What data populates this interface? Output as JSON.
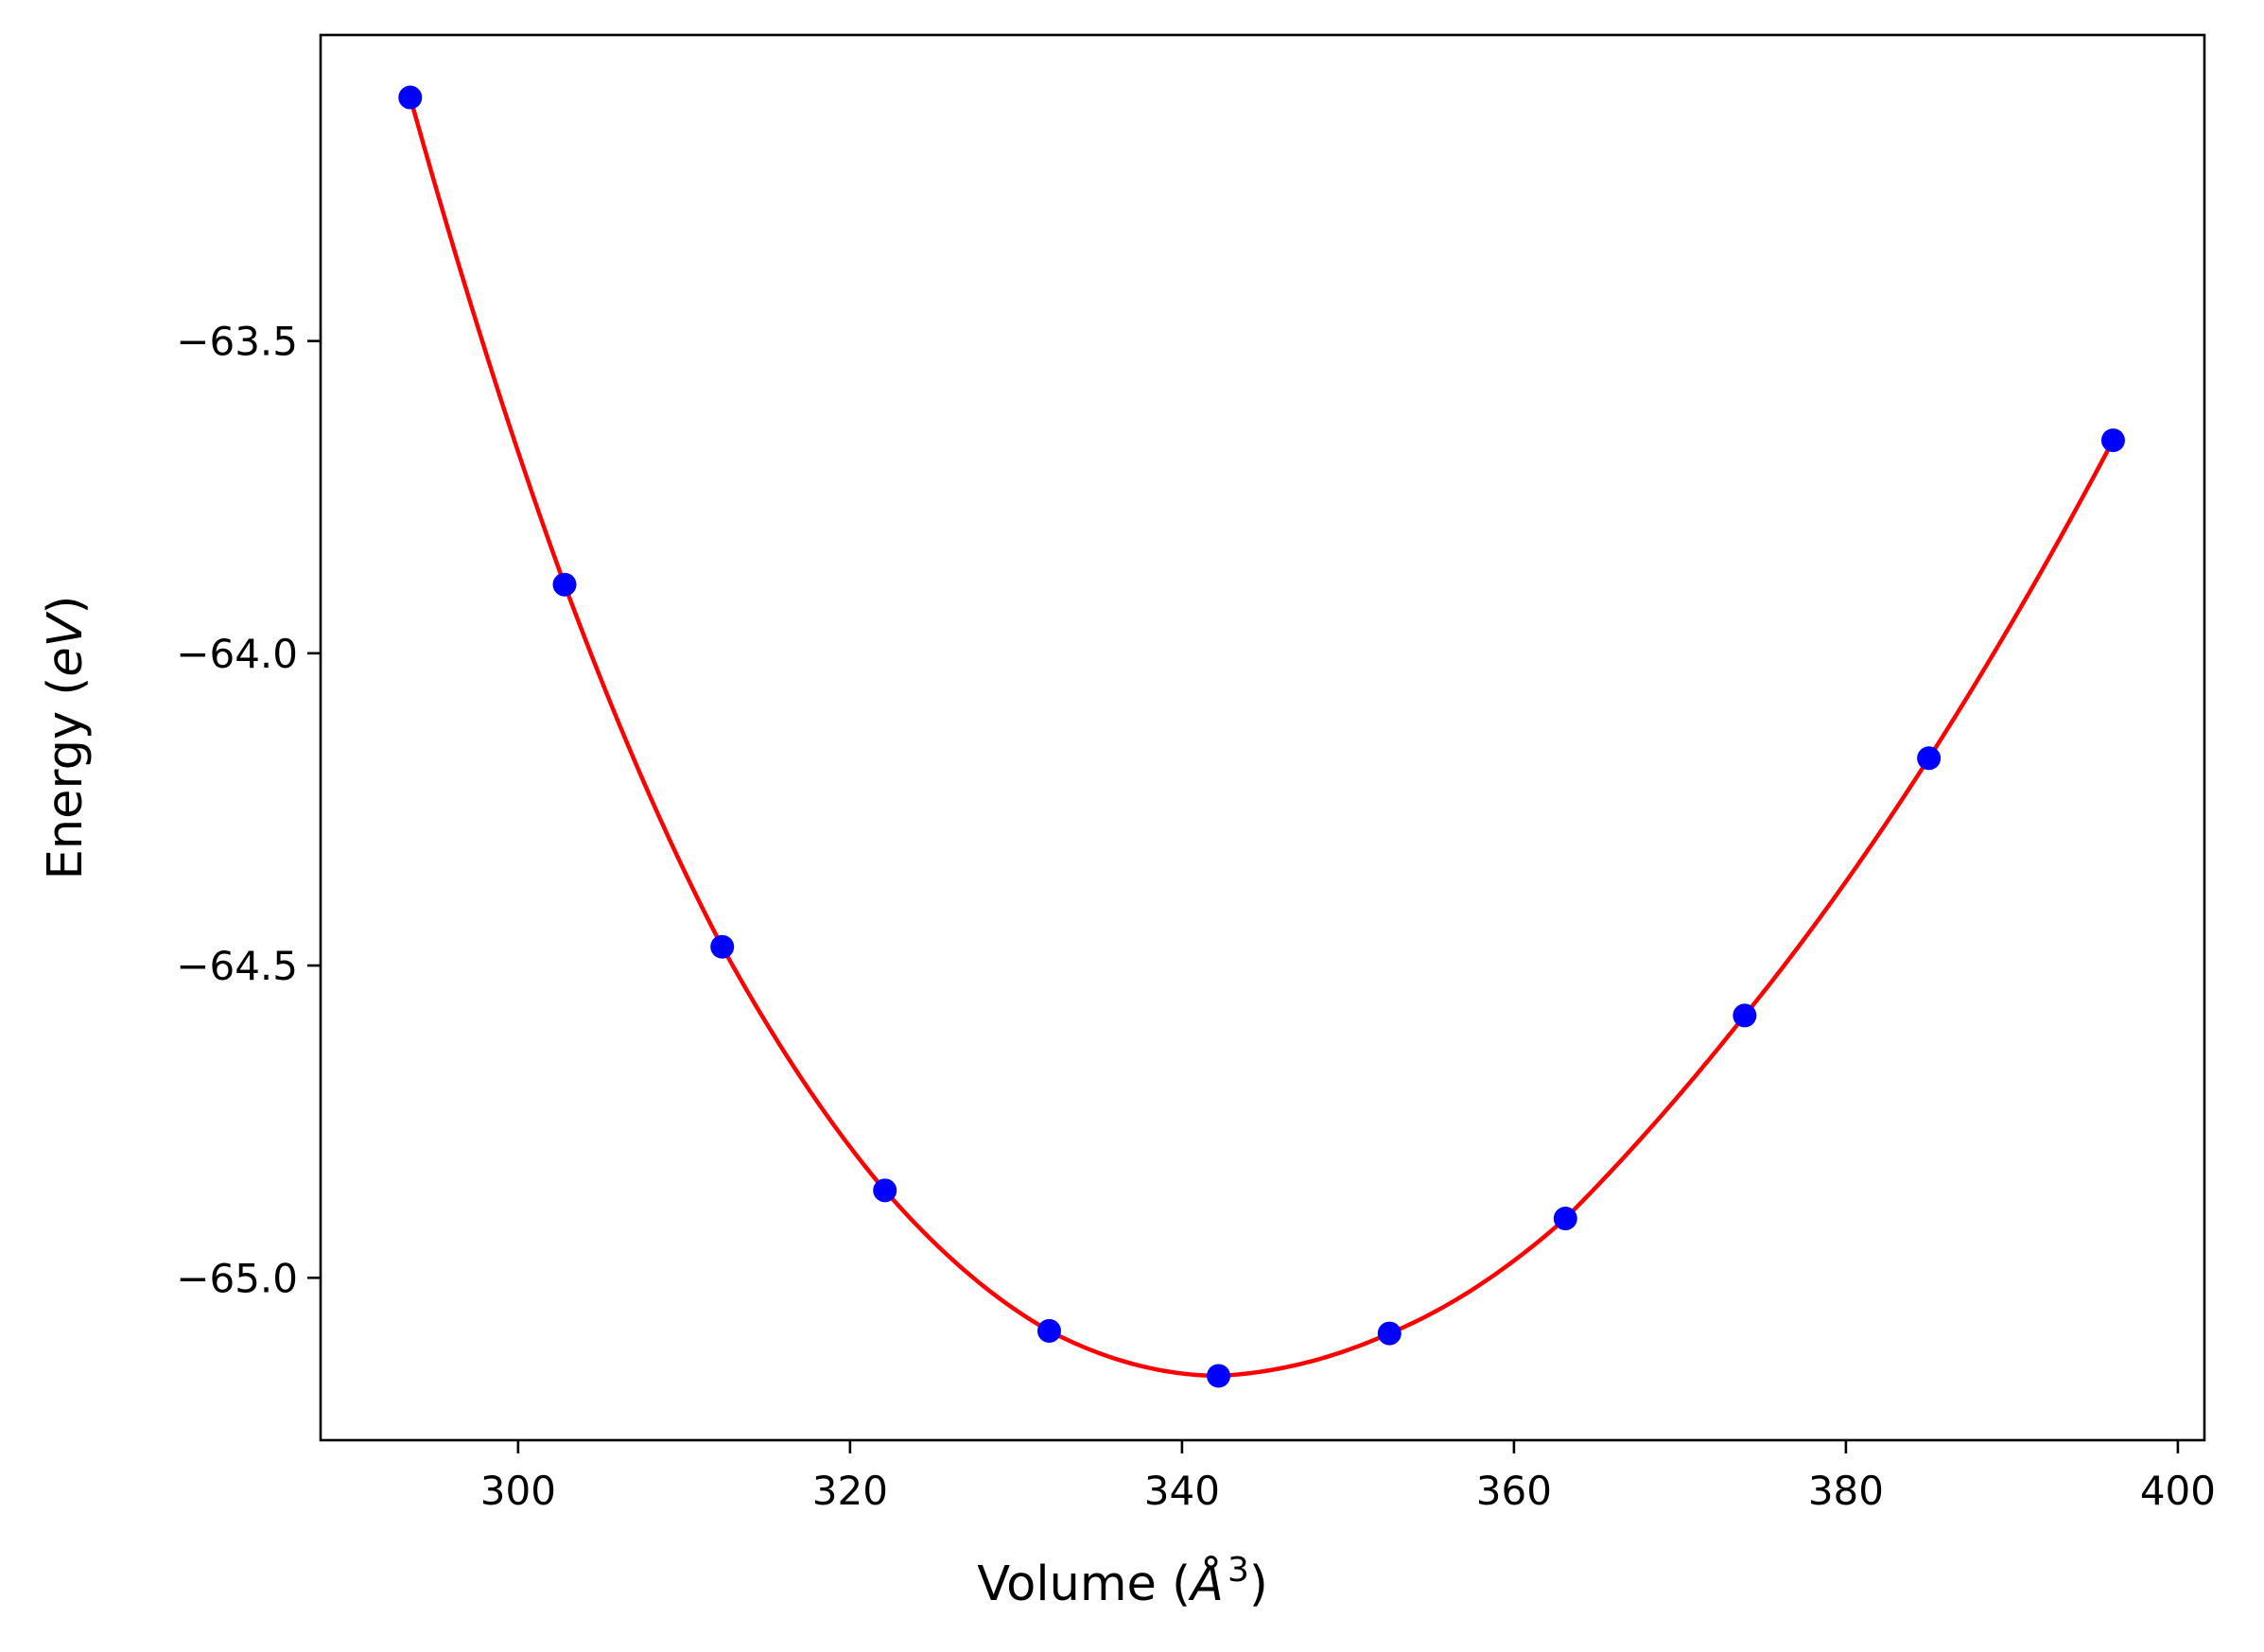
{
  "chart_data": {
    "type": "scatter",
    "title": "",
    "xlabel": "Volume",
    "xlabel_unit": "Å",
    "xlabel_exp": "3",
    "ylabel": "Energy",
    "ylabel_unit": "eV",
    "xlim": [
      288.1,
      401.6
    ],
    "ylim": [
      -65.26,
      -63.01
    ],
    "xticks": [
      300,
      320,
      340,
      360,
      380,
      400
    ],
    "yticks": [
      -63.5,
      -64.0,
      -64.5,
      -65.0
    ],
    "ytick_labels": [
      "−63.5",
      "−64.0",
      "−64.5",
      "−65.0"
    ],
    "grid": false,
    "legend": "none",
    "series": [
      {
        "kind": "points",
        "color": "#0000ff",
        "x": [
          293.5,
          302.8,
          312.3,
          322.1,
          332.0,
          342.2,
          352.5,
          363.1,
          373.9,
          385.0,
          396.1
        ],
        "y": [
          -63.11,
          -63.89,
          -64.47,
          -64.86,
          -65.085,
          -65.157,
          -65.089,
          -64.905,
          -64.58,
          -64.168,
          -63.659
        ]
      },
      {
        "kind": "fit-curve",
        "color": "#ff0000",
        "x": [
          293.5,
          302.8,
          312.3,
          322.1,
          332.0,
          342.2,
          352.5,
          363.1,
          373.9,
          385.0,
          396.1
        ],
        "y": [
          -63.11,
          -63.89,
          -64.47,
          -64.86,
          -65.085,
          -65.157,
          -65.089,
          -64.905,
          -64.58,
          -64.168,
          -63.659
        ]
      }
    ]
  }
}
